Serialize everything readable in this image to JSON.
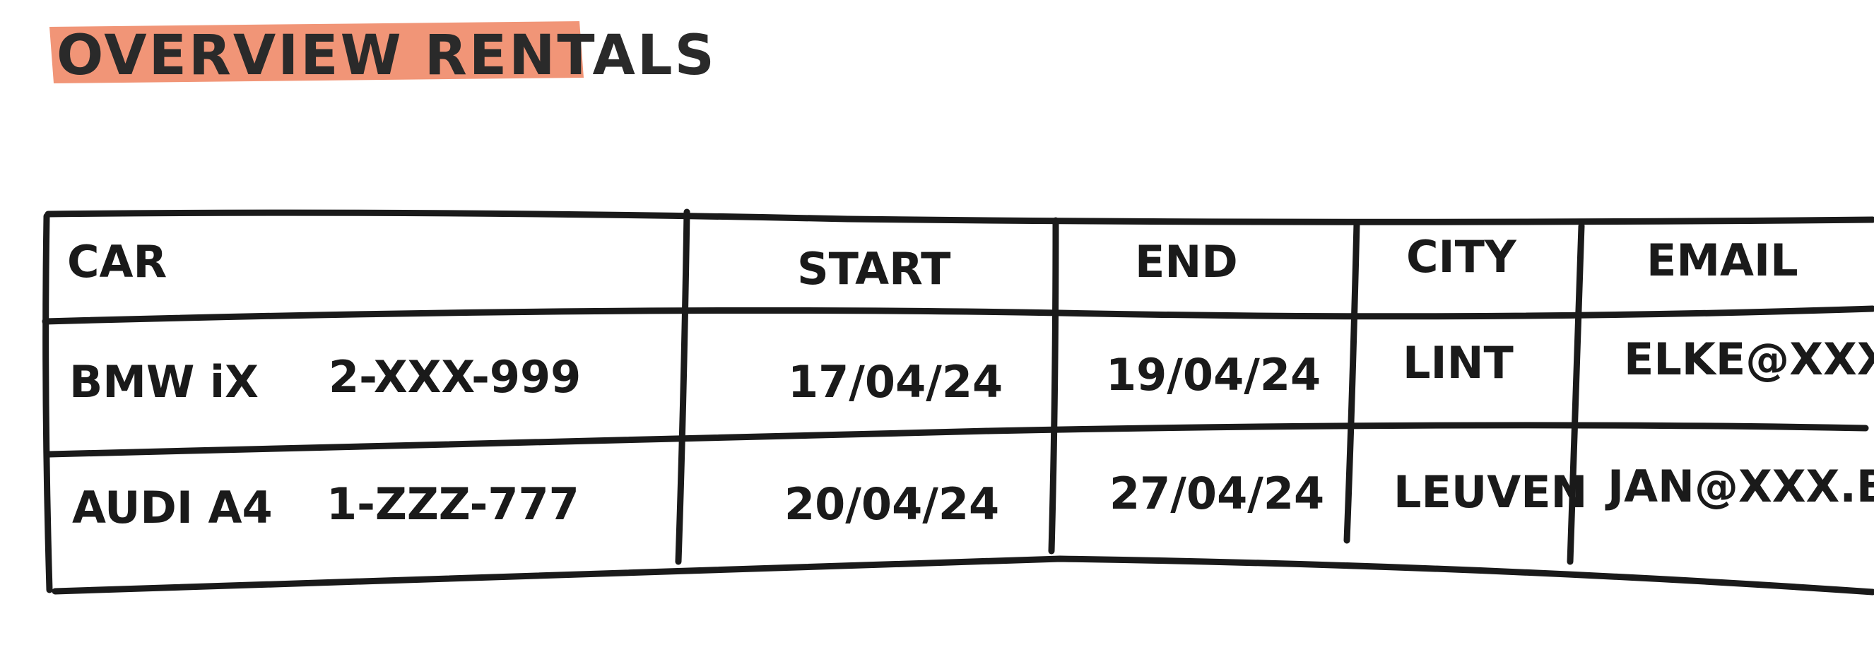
{
  "page": {
    "title": "OVERVIEW   RENTALS",
    "highlight_color": "#ef8a68"
  },
  "rentals": {
    "headers": [
      "CAR",
      "START",
      "END",
      "CITY",
      "EMAIL"
    ],
    "rows": [
      {
        "car": "BMW iX",
        "plate": "2-XXX-999",
        "start": "17/04/24",
        "end": "19/04/24",
        "city": "LINT",
        "email": "ELKE@XXX.BE"
      },
      {
        "car": "AUDI A4",
        "plate": "1-ZZZ-777",
        "start": "20/04/24",
        "end": "27/04/24",
        "city": "LEUVEN",
        "email": "JAN@XXX.BE"
      }
    ]
  }
}
